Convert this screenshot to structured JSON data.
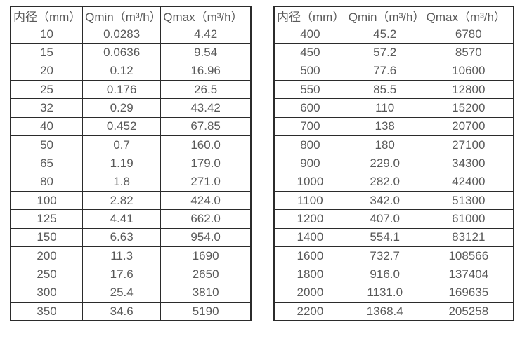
{
  "colors": {
    "background": "#ffffff",
    "border": "#2b2b2b",
    "text": "#595959"
  },
  "tables": [
    {
      "name": "flow-table-small-diameters",
      "headers": [
        "内径（mm）",
        "Qmin（m³/h）",
        "Qmax（m³/h）"
      ],
      "rows": [
        [
          "10",
          "0.0283",
          "4.42"
        ],
        [
          "15",
          "0.0636",
          "9.54"
        ],
        [
          "20",
          "0.12",
          "16.96"
        ],
        [
          "25",
          "0.176",
          "26.5"
        ],
        [
          "32",
          "0.29",
          "43.42"
        ],
        [
          "40",
          "0.452",
          "67.85"
        ],
        [
          "50",
          "0.7",
          "160.0"
        ],
        [
          "65",
          "1.19",
          "179.0"
        ],
        [
          "80",
          "1.8",
          "271.0"
        ],
        [
          "100",
          "2.82",
          "424.0"
        ],
        [
          "125",
          "4.41",
          "662.0"
        ],
        [
          "150",
          "6.63",
          "954.0"
        ],
        [
          "200",
          "11.3",
          "1690"
        ],
        [
          "250",
          "17.6",
          "2650"
        ],
        [
          "300",
          "25.4",
          "3810"
        ],
        [
          "350",
          "34.6",
          "5190"
        ]
      ]
    },
    {
      "name": "flow-table-large-diameters",
      "headers": [
        "内径（mm）",
        "Qmin（m³/h）",
        "Qmax（m³/h）"
      ],
      "rows": [
        [
          "400",
          "45.2",
          "6780"
        ],
        [
          "450",
          "57.2",
          "8570"
        ],
        [
          "500",
          "77.6",
          "10600"
        ],
        [
          "550",
          "85.5",
          "12800"
        ],
        [
          "600",
          "110",
          "15200"
        ],
        [
          "700",
          "138",
          "20700"
        ],
        [
          "800",
          "180",
          "27100"
        ],
        [
          "900",
          "229.0",
          "34300"
        ],
        [
          "1000",
          "282.0",
          "42400"
        ],
        [
          "1100",
          "342.0",
          "51300"
        ],
        [
          "1200",
          "407.0",
          "61000"
        ],
        [
          "1400",
          "554.1",
          "83121"
        ],
        [
          "1600",
          "732.7",
          "108566"
        ],
        [
          "1800",
          "916.0",
          "137404"
        ],
        [
          "2000",
          "1131.0",
          "169635"
        ],
        [
          "2200",
          "1368.4",
          "205258"
        ]
      ]
    }
  ]
}
